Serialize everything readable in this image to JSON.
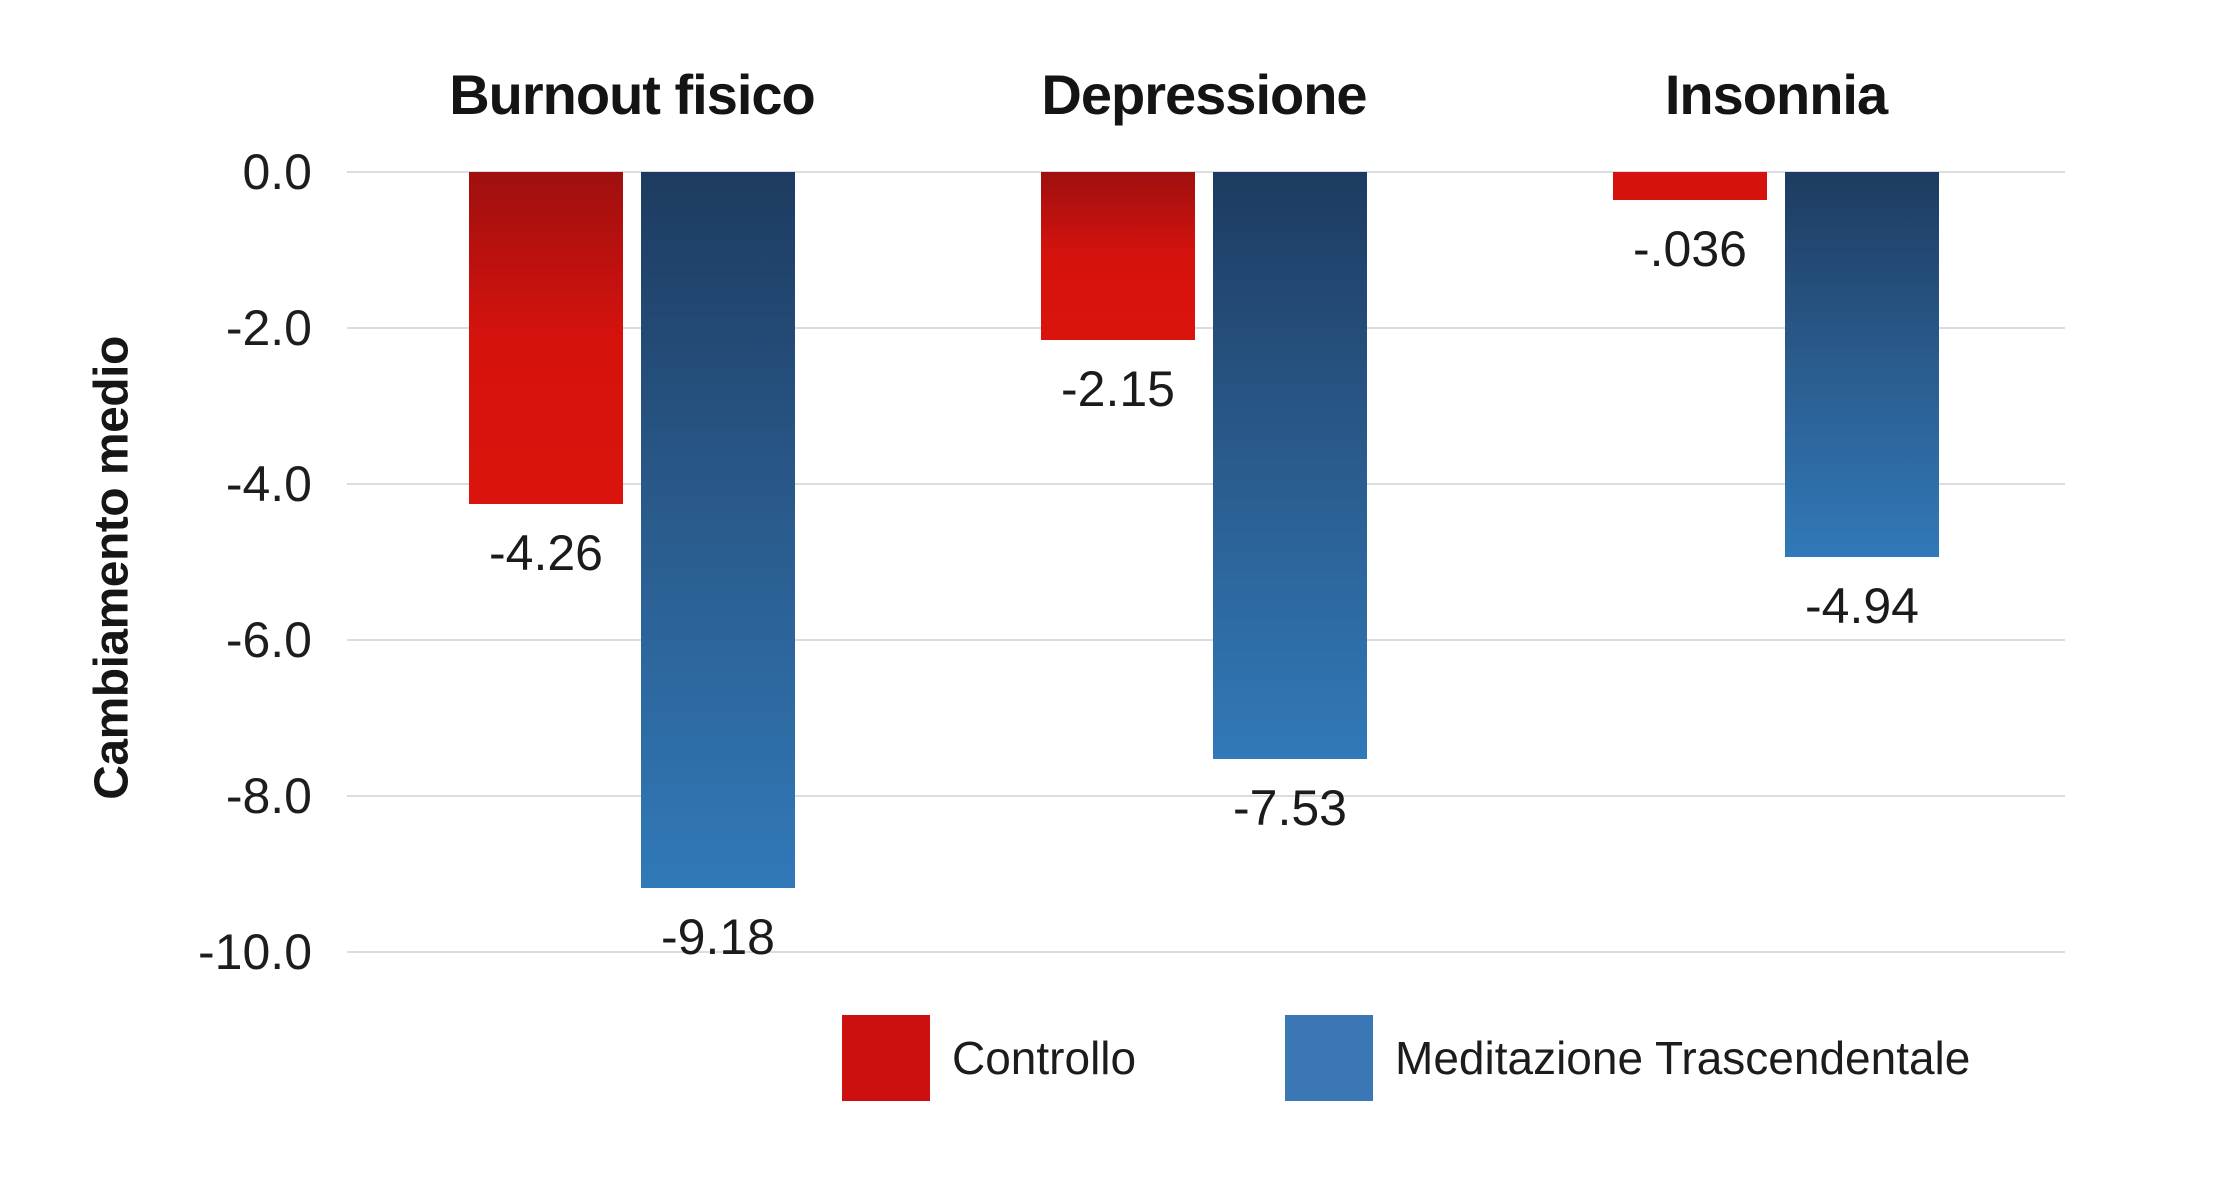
{
  "chart_data": {
    "type": "bar",
    "title": "",
    "xlabel": "",
    "ylabel": "Cambiamento medio",
    "categories": [
      "Burnout fisico",
      "Depressione",
      "Insonnia"
    ],
    "series": [
      {
        "name": "Controllo",
        "color": "#cc100f",
        "gradient": [
          "#9e100f",
          "#d6120d",
          "#da140d"
        ],
        "values": [
          -4.26,
          -2.15,
          -0.036
        ],
        "value_labels": [
          "-4.26",
          "-2.15",
          "-.036"
        ]
      },
      {
        "name": "Meditazione Trascendentale",
        "color": "#3b77b4",
        "gradient": [
          "#1d3b60",
          "#2a5c8e",
          "#3179b8"
        ],
        "values": [
          -9.18,
          -7.53,
          -4.94
        ],
        "value_labels": [
          "-9.18",
          "-7.53",
          "-4.94"
        ]
      }
    ],
    "y_ticks": [
      "0.0",
      "-2.0",
      "-4.0",
      "-6.0",
      "-8.0",
      "-10.0"
    ],
    "y_tick_values": [
      0,
      -2,
      -4,
      -6,
      -8,
      -10
    ],
    "ylim": [
      -10,
      0
    ],
    "grid": true,
    "grid_color": "#d9dde2",
    "background": "#ffffff",
    "legend_position": "bottom-center",
    "bar_labels_position": "below-bar",
    "category_titles_position": "above-plot"
  }
}
